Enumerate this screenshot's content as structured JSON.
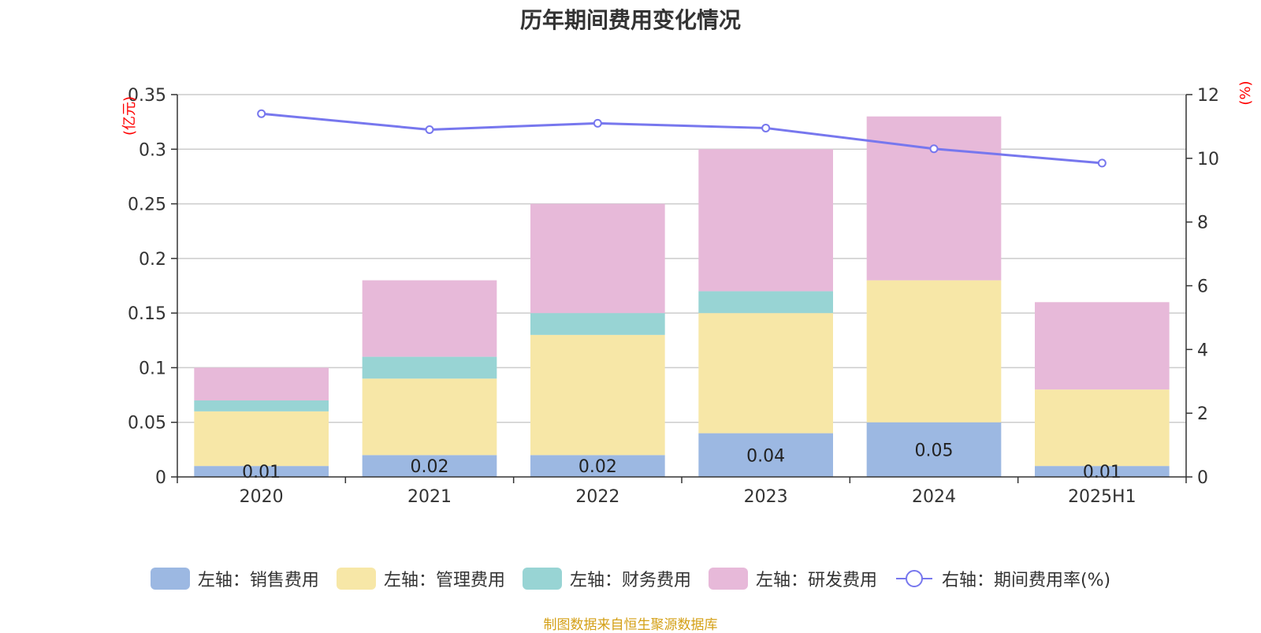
{
  "title": "历年期间费用变化情况",
  "source": "制图数据来自恒生聚源数据库",
  "colors": {
    "sales": "#9cb8e2",
    "admin": "#f7e7a7",
    "finance": "#98d4d4",
    "rnd": "#e7b9d9",
    "rate": "#7777ee",
    "axis_unit": "#ff0000",
    "grid": "#cccccc",
    "axis": "#333333"
  },
  "chart_data": {
    "type": "bar",
    "stacked": true,
    "categories": [
      "2020",
      "2021",
      "2022",
      "2023",
      "2024",
      "2025H1"
    ],
    "left_axis": {
      "unit": "(亿元)",
      "ylim": [
        0,
        0.35
      ],
      "ticks": [
        0,
        0.05,
        0.1,
        0.15,
        0.2,
        0.25,
        0.3,
        0.35
      ],
      "tick_labels": [
        "0",
        "0.05",
        "0.1",
        "0.15",
        "0.2",
        "0.25",
        "0.3",
        "0.35"
      ]
    },
    "right_axis": {
      "unit": "(%)",
      "ylim": [
        0,
        12
      ],
      "ticks": [
        0,
        2,
        4,
        6,
        8,
        10,
        12
      ],
      "tick_labels": [
        "0",
        "2",
        "4",
        "6",
        "8",
        "10",
        "12"
      ]
    },
    "series": [
      {
        "name": "左轴：销售费用",
        "key": "sales",
        "axis": "left",
        "values": [
          0.01,
          0.02,
          0.02,
          0.04,
          0.05,
          0.01
        ],
        "labels": [
          "0.01",
          "0.02",
          "0.02",
          "0.04",
          "0.05",
          "0.01"
        ]
      },
      {
        "name": "左轴：管理费用",
        "key": "admin",
        "axis": "left",
        "values": [
          0.05,
          0.07,
          0.11,
          0.11,
          0.13,
          0.07
        ]
      },
      {
        "name": "左轴：财务费用",
        "key": "finance",
        "axis": "left",
        "values": [
          0.01,
          0.02,
          0.02,
          0.02,
          0.0,
          0.0
        ]
      },
      {
        "name": "左轴：研发费用",
        "key": "rnd",
        "axis": "left",
        "values": [
          0.03,
          0.07,
          0.1,
          0.13,
          0.15,
          0.08
        ]
      },
      {
        "name": "右轴：期间费用率(%)",
        "key": "rate",
        "axis": "right",
        "type": "line",
        "values": [
          11.4,
          10.9,
          11.1,
          10.95,
          10.3,
          9.85
        ]
      }
    ],
    "grid": true,
    "legend_position": "bottom"
  }
}
